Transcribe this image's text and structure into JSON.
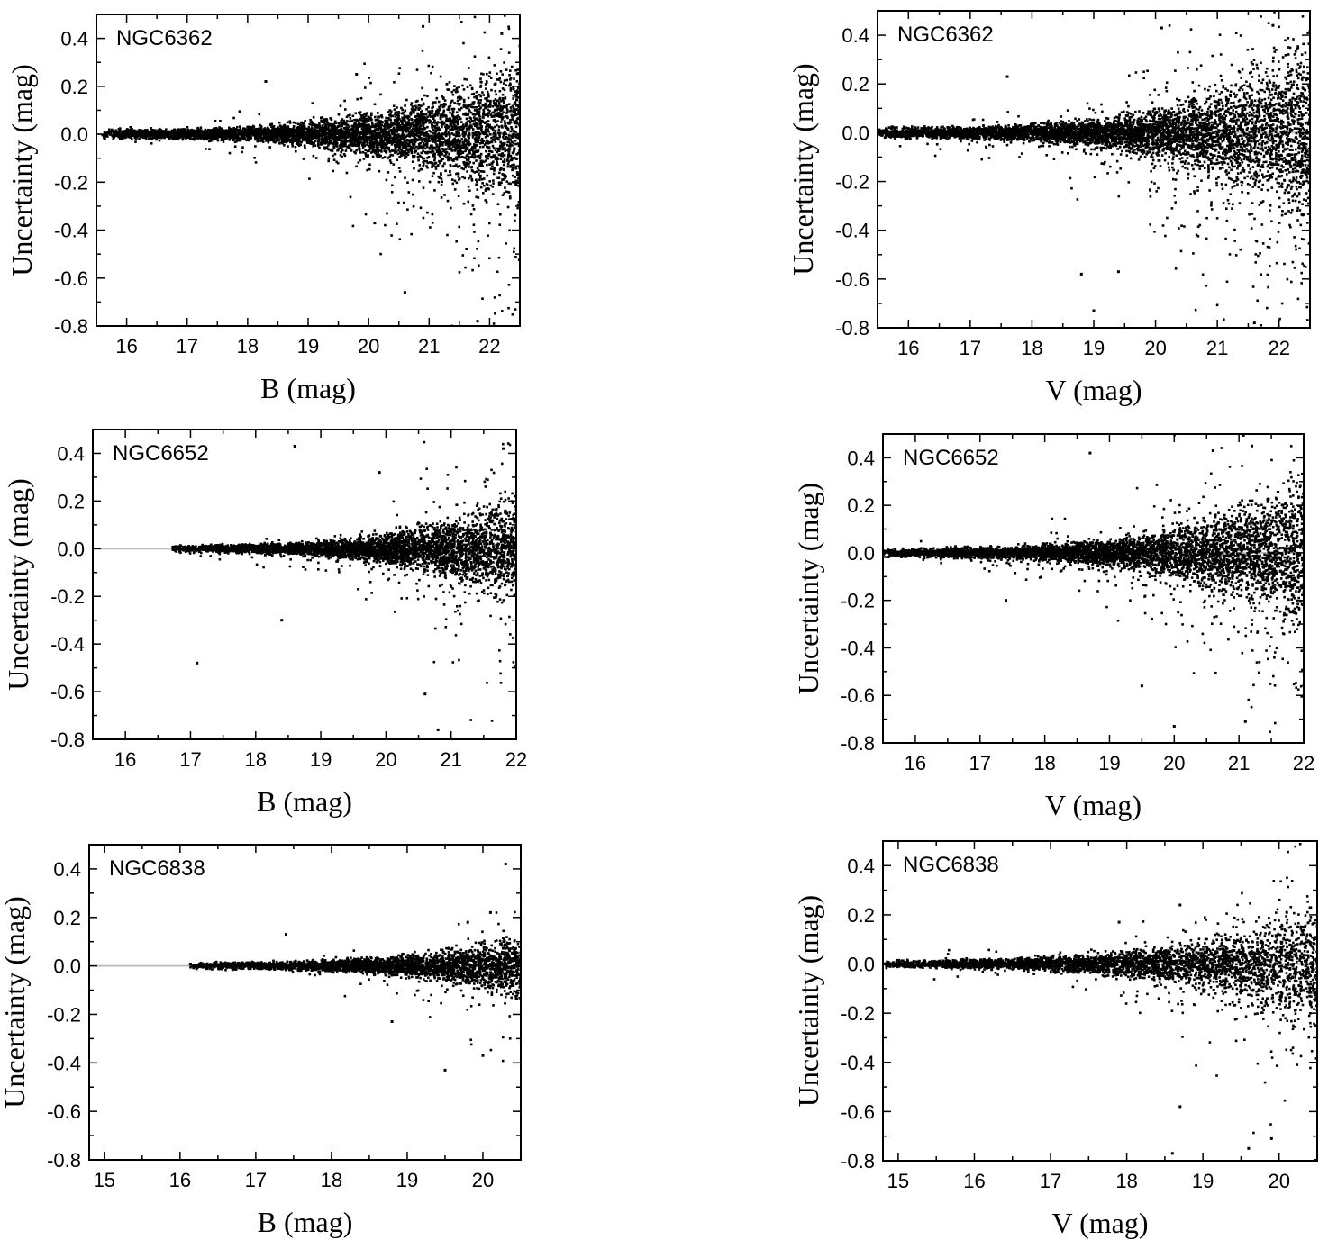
{
  "figure": {
    "background": "#ffffff",
    "point_color": "#000000",
    "zero_line_color": "#bdbdbd"
  },
  "chart_data": [
    {
      "type": "scatter",
      "panel_label": "NGC6362",
      "xlabel": "B (mag)",
      "ylabel": "Uncertainty (mag)",
      "xlim": [
        15.5,
        22.5
      ],
      "ylim": [
        -0.8,
        0.5
      ],
      "xticks": [
        16,
        17,
        18,
        19,
        20,
        21,
        22
      ],
      "yticks": [
        0.4,
        0.2,
        0.0,
        -0.2,
        -0.4,
        -0.6,
        -0.8
      ],
      "ytick_labels": [
        "0.4",
        "0.2",
        "0.0",
        "-0.2",
        "-0.4",
        "-0.6",
        "-0.8"
      ],
      "zero_line": true,
      "data_start": 15.6,
      "data_end": 22.5,
      "spread_base": 0.012,
      "spread_growth": 0.55,
      "spread_scale": 2.1,
      "n_points": 5200,
      "outliers": [
        [
          20.9,
          0.45
        ],
        [
          22.2,
          0.42
        ],
        [
          21.8,
          -0.78
        ],
        [
          20.6,
          -0.66
        ],
        [
          19.8,
          0.25
        ],
        [
          18.3,
          0.22
        ],
        [
          20.1,
          -0.37
        ]
      ]
    },
    {
      "type": "scatter",
      "panel_label": "NGC6362",
      "xlabel": "V (mag)",
      "ylabel": "Uncertainty (mag)",
      "xlim": [
        15.5,
        22.5
      ],
      "ylim": [
        -0.8,
        0.5
      ],
      "xticks": [
        16,
        17,
        18,
        19,
        20,
        21,
        22
      ],
      "yticks": [
        0.4,
        0.2,
        0.0,
        -0.2,
        -0.4,
        -0.6,
        -0.8
      ],
      "ytick_labels": [
        "0.4",
        "0.2",
        "0.0",
        "-0.2",
        "-0.4",
        "-0.6",
        "-0.8"
      ],
      "zero_line": true,
      "data_start": 15.5,
      "data_end": 22.5,
      "spread_base": 0.014,
      "spread_growth": 0.6,
      "spread_scale": 2.4,
      "n_points": 5600,
      "outliers": [
        [
          20.1,
          0.43
        ],
        [
          21.9,
          0.44
        ],
        [
          19.0,
          -0.73
        ],
        [
          18.8,
          -0.58
        ],
        [
          19.4,
          -0.57
        ],
        [
          21.6,
          -0.78
        ],
        [
          17.6,
          0.23
        ]
      ]
    },
    {
      "type": "scatter",
      "panel_label": "NGC6652",
      "xlabel": "B (mag)",
      "ylabel": "Uncertainty (mag)",
      "xlim": [
        15.5,
        22
      ],
      "ylim": [
        -0.8,
        0.5
      ],
      "xticks": [
        16,
        17,
        18,
        19,
        20,
        21,
        22
      ],
      "yticks": [
        0.4,
        0.2,
        0.0,
        -0.2,
        -0.4,
        -0.6,
        -0.8
      ],
      "ytick_labels": [
        "0.4",
        "0.2",
        "0.0",
        "-0.2",
        "-0.4",
        "-0.6",
        "-0.8"
      ],
      "zero_line": true,
      "data_start": 16.7,
      "data_end": 22.0,
      "spread_base": 0.01,
      "spread_growth": 0.6,
      "spread_scale": 1.5,
      "n_points": 4200,
      "outliers": [
        [
          18.6,
          0.43
        ],
        [
          17.1,
          -0.48
        ],
        [
          18.4,
          -0.3
        ],
        [
          20.8,
          -0.76
        ],
        [
          20.6,
          -0.61
        ],
        [
          21.8,
          0.42
        ],
        [
          19.9,
          0.32
        ]
      ]
    },
    {
      "type": "scatter",
      "panel_label": "NGC6652",
      "xlabel": "V (mag)",
      "ylabel": "Uncertainty (mag)",
      "xlim": [
        15.5,
        22
      ],
      "ylim": [
        -0.8,
        0.5
      ],
      "xticks": [
        16,
        17,
        18,
        19,
        20,
        21,
        22
      ],
      "yticks": [
        0.4,
        0.2,
        0.0,
        -0.2,
        -0.4,
        -0.6,
        -0.8
      ],
      "ytick_labels": [
        "0.4",
        "0.2",
        "0.0",
        "-0.2",
        "-0.4",
        "-0.6",
        "-0.8"
      ],
      "zero_line": true,
      "data_start": 15.5,
      "data_end": 22.0,
      "spread_base": 0.012,
      "spread_growth": 0.65,
      "spread_scale": 2.0,
      "n_points": 5200,
      "outliers": [
        [
          18.7,
          0.42
        ],
        [
          20.6,
          0.43
        ],
        [
          21.2,
          0.45
        ],
        [
          20.0,
          -0.73
        ],
        [
          21.1,
          -0.71
        ],
        [
          19.5,
          -0.56
        ],
        [
          17.4,
          -0.2
        ]
      ]
    },
    {
      "type": "scatter",
      "panel_label": "NGC6838",
      "xlabel": "B (mag)",
      "ylabel": "Uncertainty (mag)",
      "xlim": [
        14.8,
        20.5
      ],
      "ylim": [
        -0.8,
        0.5
      ],
      "xticks": [
        15,
        16,
        17,
        18,
        19,
        20
      ],
      "yticks": [
        0.4,
        0.2,
        0.0,
        -0.2,
        -0.4,
        -0.6,
        -0.8
      ],
      "ytick_labels": [
        "0.4",
        "0.2",
        "0.0",
        "-0.2",
        "-0.4",
        "-0.6",
        "-0.8"
      ],
      "zero_line": true,
      "data_start": 16.1,
      "data_end": 20.5,
      "spread_base": 0.008,
      "spread_growth": 0.75,
      "spread_scale": 0.75,
      "n_points": 3200,
      "outliers": [
        [
          20.3,
          0.42
        ],
        [
          19.5,
          -0.43
        ],
        [
          18.8,
          -0.23
        ],
        [
          20.0,
          -0.37
        ],
        [
          19.8,
          0.18
        ],
        [
          20.1,
          0.22
        ],
        [
          17.4,
          0.13
        ]
      ]
    },
    {
      "type": "scatter",
      "panel_label": "NGC6838",
      "xlabel": "V (mag)",
      "ylabel": "Uncertainty (mag)",
      "xlim": [
        14.8,
        20.5
      ],
      "ylim": [
        -0.8,
        0.5
      ],
      "xticks": [
        15,
        16,
        17,
        18,
        19,
        20
      ],
      "yticks": [
        0.4,
        0.2,
        0.0,
        -0.2,
        -0.4,
        -0.6,
        -0.8
      ],
      "ytick_labels": [
        "0.4",
        "0.2",
        "0.0",
        "-0.2",
        "-0.4",
        "-0.6",
        "-0.8"
      ],
      "zero_line": true,
      "data_start": 14.8,
      "data_end": 20.5,
      "spread_base": 0.01,
      "spread_growth": 0.75,
      "spread_scale": 1.6,
      "n_points": 3800,
      "outliers": [
        [
          18.6,
          -0.77
        ],
        [
          19.6,
          -0.75
        ],
        [
          18.7,
          0.24
        ],
        [
          17.9,
          0.17
        ],
        [
          19.9,
          -0.71
        ],
        [
          18.7,
          -0.58
        ],
        [
          20.1,
          0.21
        ]
      ]
    }
  ]
}
